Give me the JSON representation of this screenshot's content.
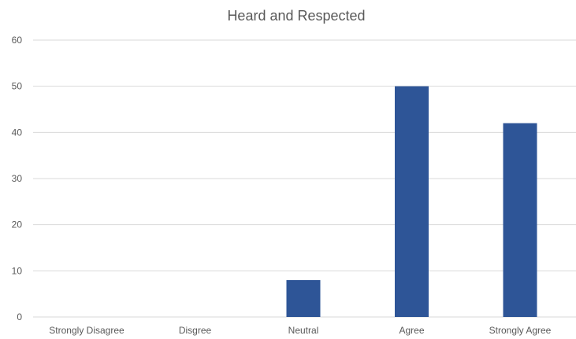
{
  "chart_data": {
    "type": "bar",
    "title": "Heard and Respected",
    "xlabel": "",
    "ylabel": "",
    "categories": [
      "Strongly Disagree",
      "Disgree",
      "Neutral",
      "Agree",
      "Strongly Agree"
    ],
    "values": [
      0,
      0,
      8,
      50,
      42
    ],
    "ylim": [
      0,
      60
    ],
    "yticks": [
      0,
      10,
      20,
      30,
      40,
      50,
      60
    ],
    "grid": true,
    "legend": "none",
    "bar_color": "#2e5597",
    "grid_color": "#d9d9d9",
    "text_color": "#595959"
  }
}
